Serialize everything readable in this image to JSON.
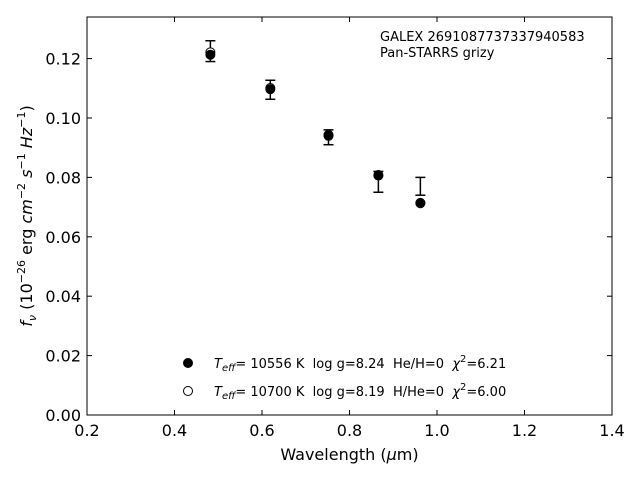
{
  "chart_data": {
    "type": "scatter",
    "xlabel": "Wavelength (μm)",
    "ylabel": "f_ν (10^-26 erg cm^-2 s^-1 Hz^-1)",
    "xlim": [
      0.2,
      1.4
    ],
    "ylim": [
      0.0,
      0.134
    ],
    "xticks": [
      "0.2",
      "0.4",
      "0.6",
      "0.8",
      "1.0",
      "1.2",
      "1.4"
    ],
    "yticks": [
      "0.00",
      "0.02",
      "0.04",
      "0.06",
      "0.08",
      "0.10",
      "0.12"
    ],
    "annotations": [
      "GALEX 2691087737337940583",
      "Pan-STARRS grizy"
    ],
    "observed": {
      "x": [
        0.482,
        0.619,
        0.752,
        0.866,
        0.962
      ],
      "y": [
        0.1225,
        0.1095,
        0.0935,
        0.0785,
        0.077
      ],
      "yerr": [
        0.0035,
        0.0032,
        0.0025,
        0.0035,
        0.003
      ]
    },
    "series": [
      {
        "name": "T_eff= 10556 K  log g=8.24  He/H=0  χ²=6.21",
        "marker": "filled",
        "x": [
          0.482,
          0.619,
          0.752,
          0.866,
          0.962
        ],
        "y": [
          0.1213,
          0.1097,
          0.094,
          0.0806,
          0.0713
        ]
      },
      {
        "name": "T_eff= 10700 K  log g=8.19  H/He=0  χ²=6.00",
        "marker": "open",
        "x": [
          0.482,
          0.619,
          0.752,
          0.866,
          0.962
        ],
        "y": [
          0.1221,
          0.1101,
          0.0943,
          0.0808,
          0.0714
        ]
      }
    ],
    "legend": {
      "placement": "lower-center",
      "entries": [
        {
          "teff": "10556 K",
          "rest": "  log g=8.24  He/H=0  ",
          "chi": "=6.21"
        },
        {
          "teff": "10700 K",
          "rest": "  log g=8.19  H/He=0  ",
          "chi": "=6.00"
        }
      ]
    },
    "grid": false
  }
}
